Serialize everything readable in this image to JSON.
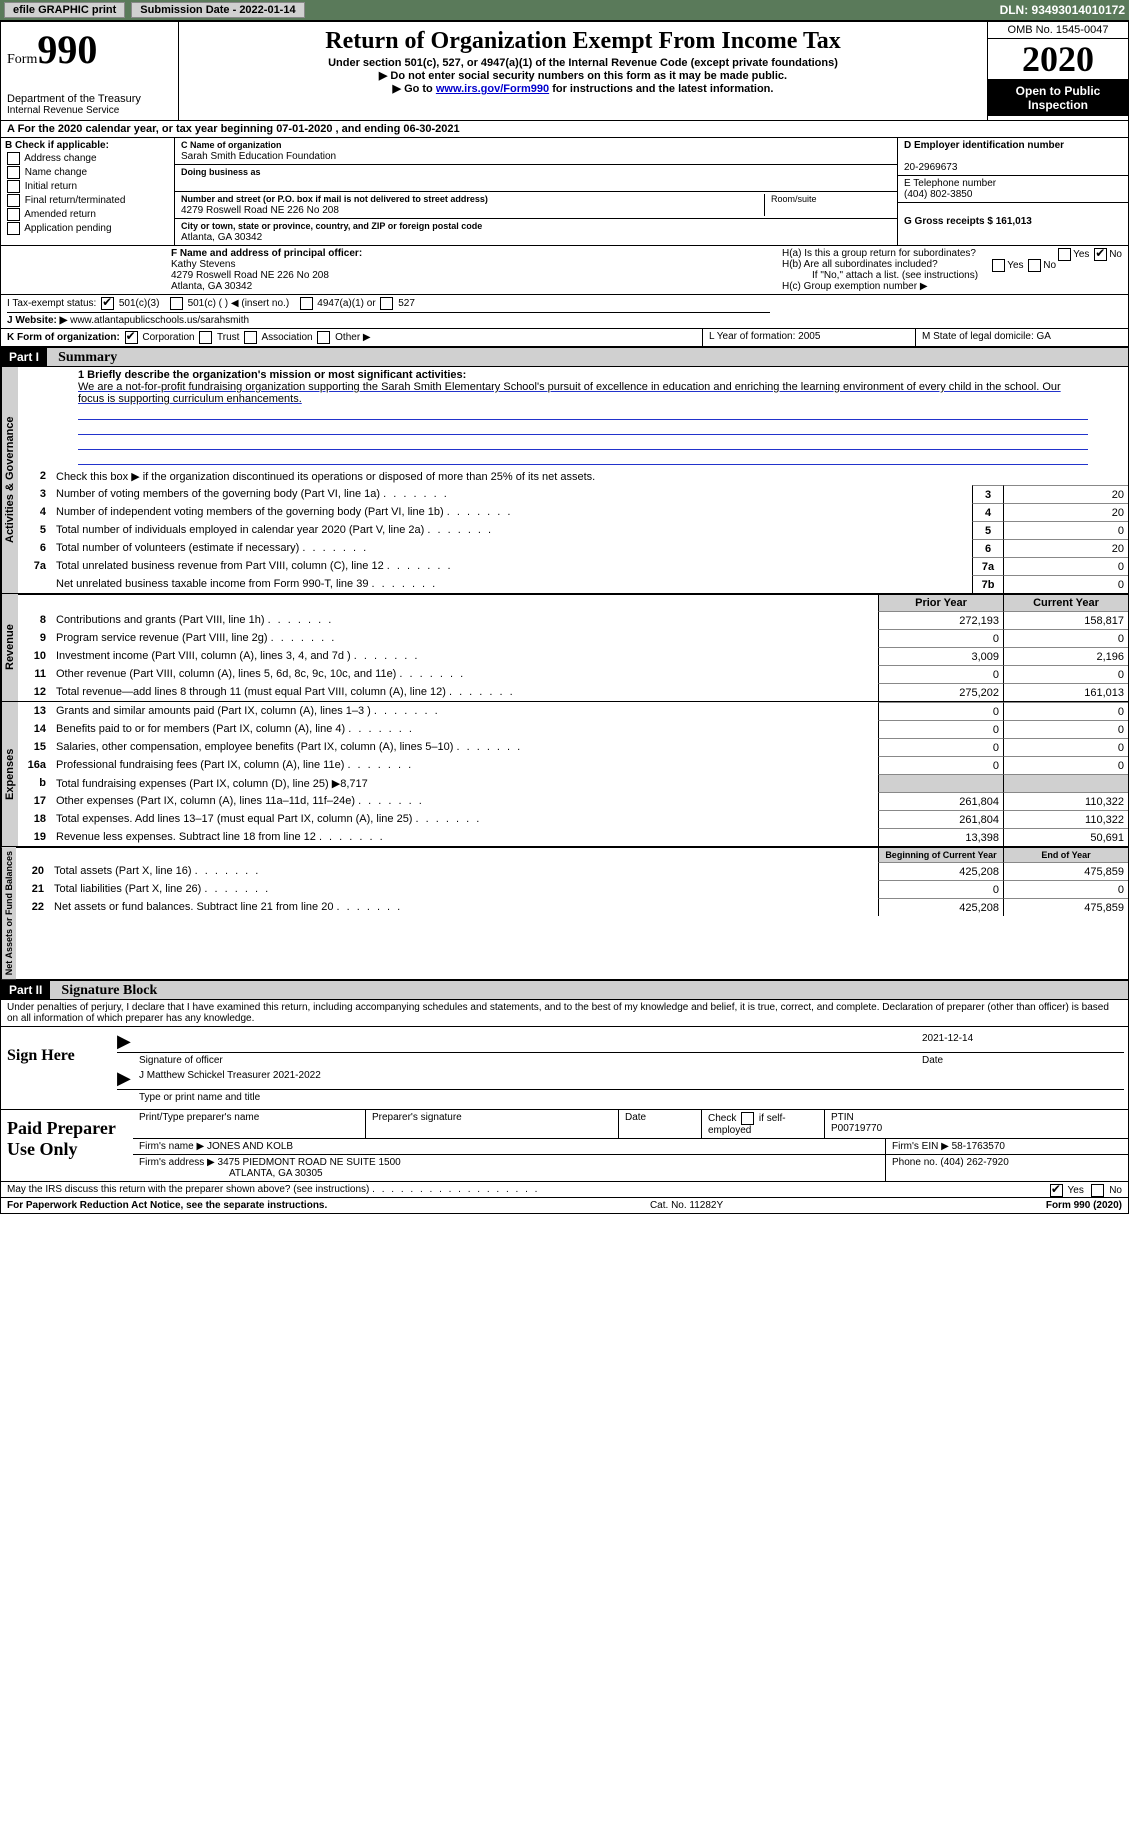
{
  "topbar": {
    "efile_label": "efile GRAPHIC print",
    "submission_label": "Submission Date - 2022-01-14",
    "dln_label": "DLN: 93493014010172"
  },
  "header": {
    "form_word": "Form",
    "form_number": "990",
    "dept": "Department of the Treasury",
    "irs": "Internal Revenue Service",
    "title": "Return of Organization Exempt From Income Tax",
    "sub": "Under section 501(c), 527, or 4947(a)(1) of the Internal Revenue Code (except private foundations)",
    "note1": "▶ Do not enter social security numbers on this form as it may be made public.",
    "note2_pre": "▶ Go to ",
    "note2_link": "www.irs.gov/Form990",
    "note2_post": " for instructions and the latest information.",
    "omb": "OMB No. 1545-0047",
    "year": "2020",
    "inspection1": "Open to Public",
    "inspection2": "Inspection"
  },
  "period": "A For the 2020 calendar year, or tax year beginning 07-01-2020    , and ending 06-30-2021",
  "sectionB": {
    "title": "B Check if applicable:",
    "opts": [
      "Address change",
      "Name change",
      "Initial return",
      "Final return/terminated",
      "Amended return",
      "Application pending"
    ]
  },
  "sectionC": {
    "name_label": "C Name of organization",
    "name": "Sarah Smith Education Foundation",
    "dba_label": "Doing business as",
    "addr_label": "Number and street (or P.O. box if mail is not delivered to street address)",
    "room_label": "Room/suite",
    "addr": "4279 Roswell Road NE 226 No 208",
    "city_label": "City or town, state or province, country, and ZIP or foreign postal code",
    "city": "Atlanta, GA   30342"
  },
  "sectionD": {
    "ein_label": "D Employer identification number",
    "ein": "20-2969673",
    "phone_label": "E Telephone number",
    "phone": "(404) 802-3850",
    "gross_label": "G Gross receipts $ 161,013"
  },
  "sectionF": {
    "label": "F  Name and address of principal officer:",
    "name": "Kathy Stevens",
    "addr1": "4279 Roswell Road NE 226 No 208",
    "addr2": "Atlanta, GA   30342"
  },
  "sectionH": {
    "a": "H(a)  Is this a group return for subordinates?",
    "b": "H(b)  Are all subordinates included?",
    "b_note": "If \"No,\" attach a list. (see instructions)",
    "c": "H(c)  Group exemption number ▶"
  },
  "sectionI": {
    "label": "I    Tax-exempt status:",
    "o1": "501(c)(3)",
    "o2": "501(c) (   ) ◀ (insert no.)",
    "o3": "4947(a)(1) or",
    "o4": "527"
  },
  "sectionJ": {
    "label": "J   Website: ▶",
    "url": "www.atlantapublicschools.us/sarahsmith"
  },
  "sectionK": {
    "label": "K Form of organization:",
    "o1": "Corporation",
    "o2": "Trust",
    "o3": "Association",
    "o4": "Other ▶"
  },
  "sectionL": "L Year of formation: 2005",
  "sectionM": "M State of legal domicile: GA",
  "part1": {
    "header": "Part I",
    "title": "Summary",
    "q1": "1  Briefly describe the organization's mission or most significant activities:",
    "mission": "We are a not-for-profit fundraising organization supporting the Sarah Smith Elementary School's pursuit of excellence in education and enriching the learning environment of every child in the school. Our focus is supporting curriculum enhancements.",
    "q2": "Check this box ▶       if the organization discontinued its operations or disposed of more than 25% of its net assets.",
    "lines_gov": [
      {
        "n": "3",
        "d": "Number of voting members of the governing body (Part VI, line 1a)",
        "b": "3",
        "v": "20"
      },
      {
        "n": "4",
        "d": "Number of independent voting members of the governing body (Part VI, line 1b)",
        "b": "4",
        "v": "20"
      },
      {
        "n": "5",
        "d": "Total number of individuals employed in calendar year 2020 (Part V, line 2a)",
        "b": "5",
        "v": "0"
      },
      {
        "n": "6",
        "d": "Total number of volunteers (estimate if necessary)",
        "b": "6",
        "v": "20"
      },
      {
        "n": "7a",
        "d": "Total unrelated business revenue from Part VIII, column (C), line 12",
        "b": "7a",
        "v": "0"
      },
      {
        "n": "",
        "d": "Net unrelated business taxable income from Form 990-T, line 39",
        "b": "7b",
        "v": "0"
      }
    ],
    "col_prior": "Prior Year",
    "col_current": "Current Year",
    "lines_rev": [
      {
        "n": "8",
        "d": "Contributions and grants (Part VIII, line 1h)",
        "p": "272,193",
        "c": "158,817"
      },
      {
        "n": "9",
        "d": "Program service revenue (Part VIII, line 2g)",
        "p": "0",
        "c": "0"
      },
      {
        "n": "10",
        "d": "Investment income (Part VIII, column (A), lines 3, 4, and 7d )",
        "p": "3,009",
        "c": "2,196"
      },
      {
        "n": "11",
        "d": "Other revenue (Part VIII, column (A), lines 5, 6d, 8c, 9c, 10c, and 11e)",
        "p": "0",
        "c": "0"
      },
      {
        "n": "12",
        "d": "Total revenue—add lines 8 through 11 (must equal Part VIII, column (A), line 12)",
        "p": "275,202",
        "c": "161,013"
      }
    ],
    "lines_exp": [
      {
        "n": "13",
        "d": "Grants and similar amounts paid (Part IX, column (A), lines 1–3 )",
        "p": "0",
        "c": "0"
      },
      {
        "n": "14",
        "d": "Benefits paid to or for members (Part IX, column (A), line 4)",
        "p": "0",
        "c": "0"
      },
      {
        "n": "15",
        "d": "Salaries, other compensation, employee benefits (Part IX, column (A), lines 5–10)",
        "p": "0",
        "c": "0"
      },
      {
        "n": "16a",
        "d": "Professional fundraising fees (Part IX, column (A), line 11e)",
        "p": "0",
        "c": "0"
      },
      {
        "n": "b",
        "d": "Total fundraising expenses (Part IX, column (D), line 25) ▶8,717",
        "p": "",
        "c": "",
        "grey": true
      },
      {
        "n": "17",
        "d": "Other expenses (Part IX, column (A), lines 11a–11d, 11f–24e)",
        "p": "261,804",
        "c": "110,322"
      },
      {
        "n": "18",
        "d": "Total expenses. Add lines 13–17 (must equal Part IX, column (A), line 25)",
        "p": "261,804",
        "c": "110,322"
      },
      {
        "n": "19",
        "d": "Revenue less expenses. Subtract line 18 from line 12",
        "p": "13,398",
        "c": "50,691"
      }
    ],
    "col_begin": "Beginning of Current Year",
    "col_end": "End of Year",
    "lines_net": [
      {
        "n": "20",
        "d": "Total assets (Part X, line 16)",
        "p": "425,208",
        "c": "475,859"
      },
      {
        "n": "21",
        "d": "Total liabilities (Part X, line 26)",
        "p": "0",
        "c": "0"
      },
      {
        "n": "22",
        "d": "Net assets or fund balances. Subtract line 21 from line 20",
        "p": "425,208",
        "c": "475,859"
      }
    ],
    "side_gov": "Activities & Governance",
    "side_rev": "Revenue",
    "side_exp": "Expenses",
    "side_net": "Net Assets or Fund Balances",
    "b_sublabel": "b"
  },
  "part2": {
    "header": "Part II",
    "title": "Signature Block",
    "penalties": "Under penalties of perjury, I declare that I have examined this return, including accompanying schedules and statements, and to the best of my knowledge and belief, it is true, correct, and complete. Declaration of preparer (other than officer) is based on all information of which preparer has any knowledge.",
    "sign_here": "Sign Here",
    "sig_officer": "Signature of officer",
    "sig_date": "2021-12-14",
    "date_label": "Date",
    "officer_name": "J Matthew Schickel Treasurer 2021-2022",
    "type_label": "Type or print name and title"
  },
  "preparer": {
    "title": "Paid Preparer Use Only",
    "h1": "Print/Type preparer's name",
    "h2": "Preparer's signature",
    "h3": "Date",
    "h4_pre": "Check",
    "h4_post": "if self-employed",
    "h5": "PTIN",
    "ptin": "P00719770",
    "firm_label": "Firm's name    ▶",
    "firm_name": "JONES AND KOLB",
    "firm_ein_label": "Firm's EIN ▶",
    "firm_ein": "58-1763570",
    "addr_label": "Firm's address ▶",
    "addr1": "3475 PIEDMONT ROAD NE SUITE 1500",
    "addr2": "ATLANTA, GA   30305",
    "phone_label": "Phone no.",
    "phone": "(404) 262-7920"
  },
  "discuss": "May the IRS discuss this return with the preparer shown above? (see instructions)",
  "footer": {
    "left": "For Paperwork Reduction Act Notice, see the separate instructions.",
    "mid": "Cat. No. 11282Y",
    "right": "Form 990 (2020)"
  },
  "yn": {
    "yes": "Yes",
    "no": "No"
  }
}
